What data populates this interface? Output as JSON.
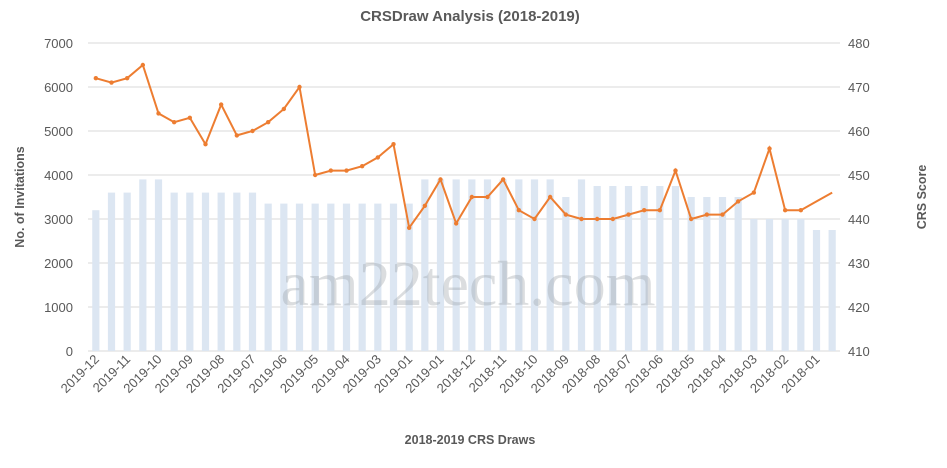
{
  "watermark": "am22tech.com",
  "colors": {
    "bars": "#dce6f2",
    "line": "#ed7d31",
    "grid": "#d9d9d9",
    "text": "#595959"
  },
  "chart_data": {
    "type": "bar+line",
    "title": "CRSDraw Analysis (2018-2019)",
    "xlabel": "2018-2019 CRS Draws",
    "ylabel": "No. of Invitations",
    "y2label": "CRS Score",
    "ylim": [
      0,
      7000
    ],
    "y2lim": [
      410,
      480
    ],
    "yticks": [
      "0",
      "1000",
      "2000",
      "3000",
      "4000",
      "5000",
      "6000",
      "7000"
    ],
    "y2ticks": [
      "410",
      "420",
      "430",
      "440",
      "450",
      "460",
      "470",
      "480"
    ],
    "x_tick_labels": [
      "2019-12",
      "2019-11",
      "2019-10",
      "2019-09",
      "2019-08",
      "2019-07",
      "2019-06",
      "2019-05",
      "2019-04",
      "2019-03",
      "2019-01",
      "2019-01",
      "2018-12",
      "2018-11",
      "2018-10",
      "2018-09",
      "2018-08",
      "2018-07",
      "2018-06",
      "2018-05",
      "2018-04",
      "2018-03",
      "2018-02",
      "2018-01"
    ],
    "grid": true,
    "series": [
      {
        "name": "No. of Invitations",
        "type": "bar",
        "axis": "left",
        "values": [
          3200,
          3600,
          3600,
          3900,
          3900,
          3600,
          3600,
          3600,
          3600,
          3600,
          3600,
          3350,
          3350,
          3350,
          3350,
          3350,
          3350,
          3350,
          3350,
          3350,
          3350,
          3900,
          3900,
          3900,
          3900,
          3900,
          3900,
          3900,
          3900,
          3900,
          3500,
          3900,
          3750,
          3750,
          3750,
          3750,
          3750,
          3750,
          3500,
          3500,
          3500,
          3500,
          3000,
          3000,
          3000,
          3000,
          2750,
          2750
        ]
      },
      {
        "name": "CRS Score",
        "type": "line",
        "axis": "right",
        "values": [
          472,
          471,
          472,
          475,
          464,
          462,
          463,
          457,
          466,
          459,
          460,
          462,
          465,
          470,
          450,
          451,
          451,
          452,
          454,
          457,
          438,
          443,
          449,
          439,
          445,
          445,
          449,
          442,
          440,
          445,
          441,
          440,
          440,
          440,
          441,
          442,
          442,
          451,
          440,
          441,
          441,
          444,
          446,
          456,
          442,
          442,
          444,
          446
        ]
      }
    ]
  }
}
